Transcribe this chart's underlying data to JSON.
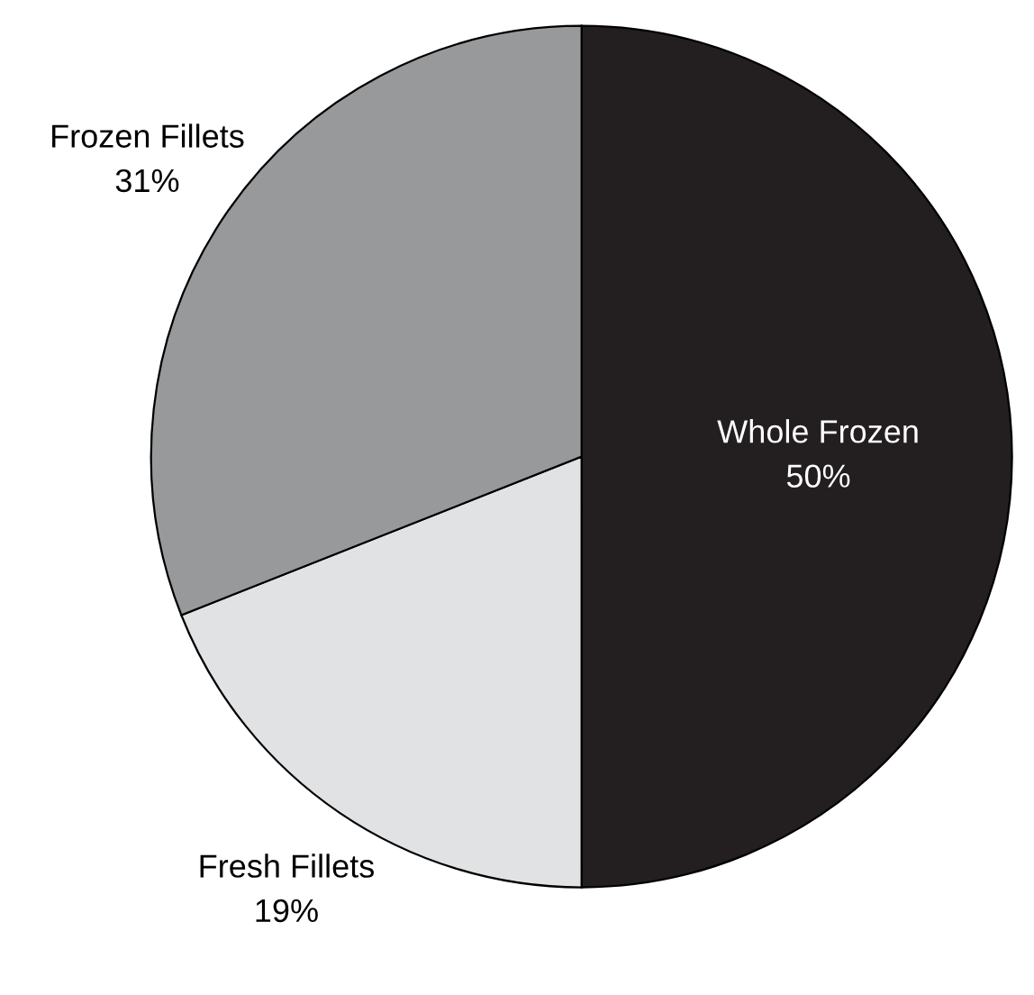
{
  "chart_data": {
    "type": "pie",
    "categories": [
      "Whole Frozen",
      "Fresh Fillets",
      "Frozen Fillets"
    ],
    "values": [
      50,
      19,
      31
    ],
    "colors": [
      "#231f20",
      "#e1e2e4",
      "#97999b"
    ],
    "value_labels": [
      "50%",
      "19%",
      "31%"
    ]
  }
}
